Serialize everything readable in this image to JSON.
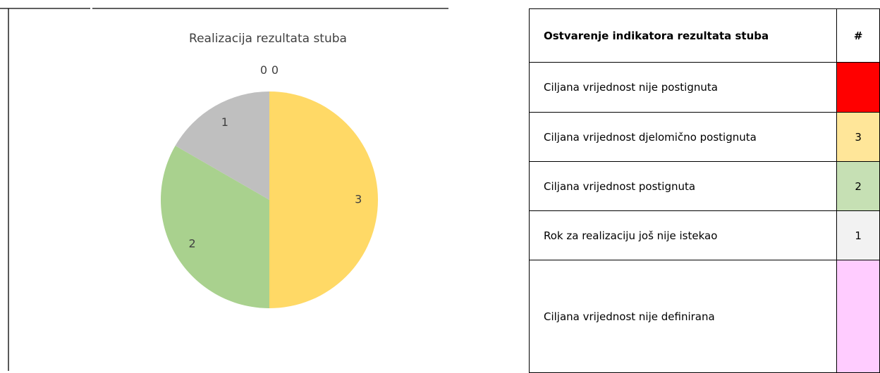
{
  "chart_data": {
    "type": "pie",
    "title": "Realizacija rezultata stuba",
    "values": [
      0,
      3,
      2,
      1,
      0
    ],
    "colors": [
      "#ff0000",
      "#ffd966",
      "#a9d18e",
      "#bfbfbf",
      "#ffccff"
    ]
  },
  "table": {
    "header": [
      "Ostvarenje indikatora rezultata stuba",
      "#"
    ],
    "rows": [
      {
        "label": "Ciljana vrijednost nije postignuta",
        "count": null,
        "color": "#ff0000"
      },
      {
        "label": "Ciljana vrijednost djelomično postignuta",
        "count": 3,
        "color": "#ffe699"
      },
      {
        "label": "Ciljana vrijednost postignuta",
        "count": 2,
        "color": "#c6e0b4"
      },
      {
        "label": "Rok za realizaciju još nije istekao",
        "count": 1,
        "color": "#f2f2f2"
      },
      {
        "label": "Ciljana vrijednost nije definirana",
        "count": null,
        "color": "#ffccff"
      }
    ]
  }
}
